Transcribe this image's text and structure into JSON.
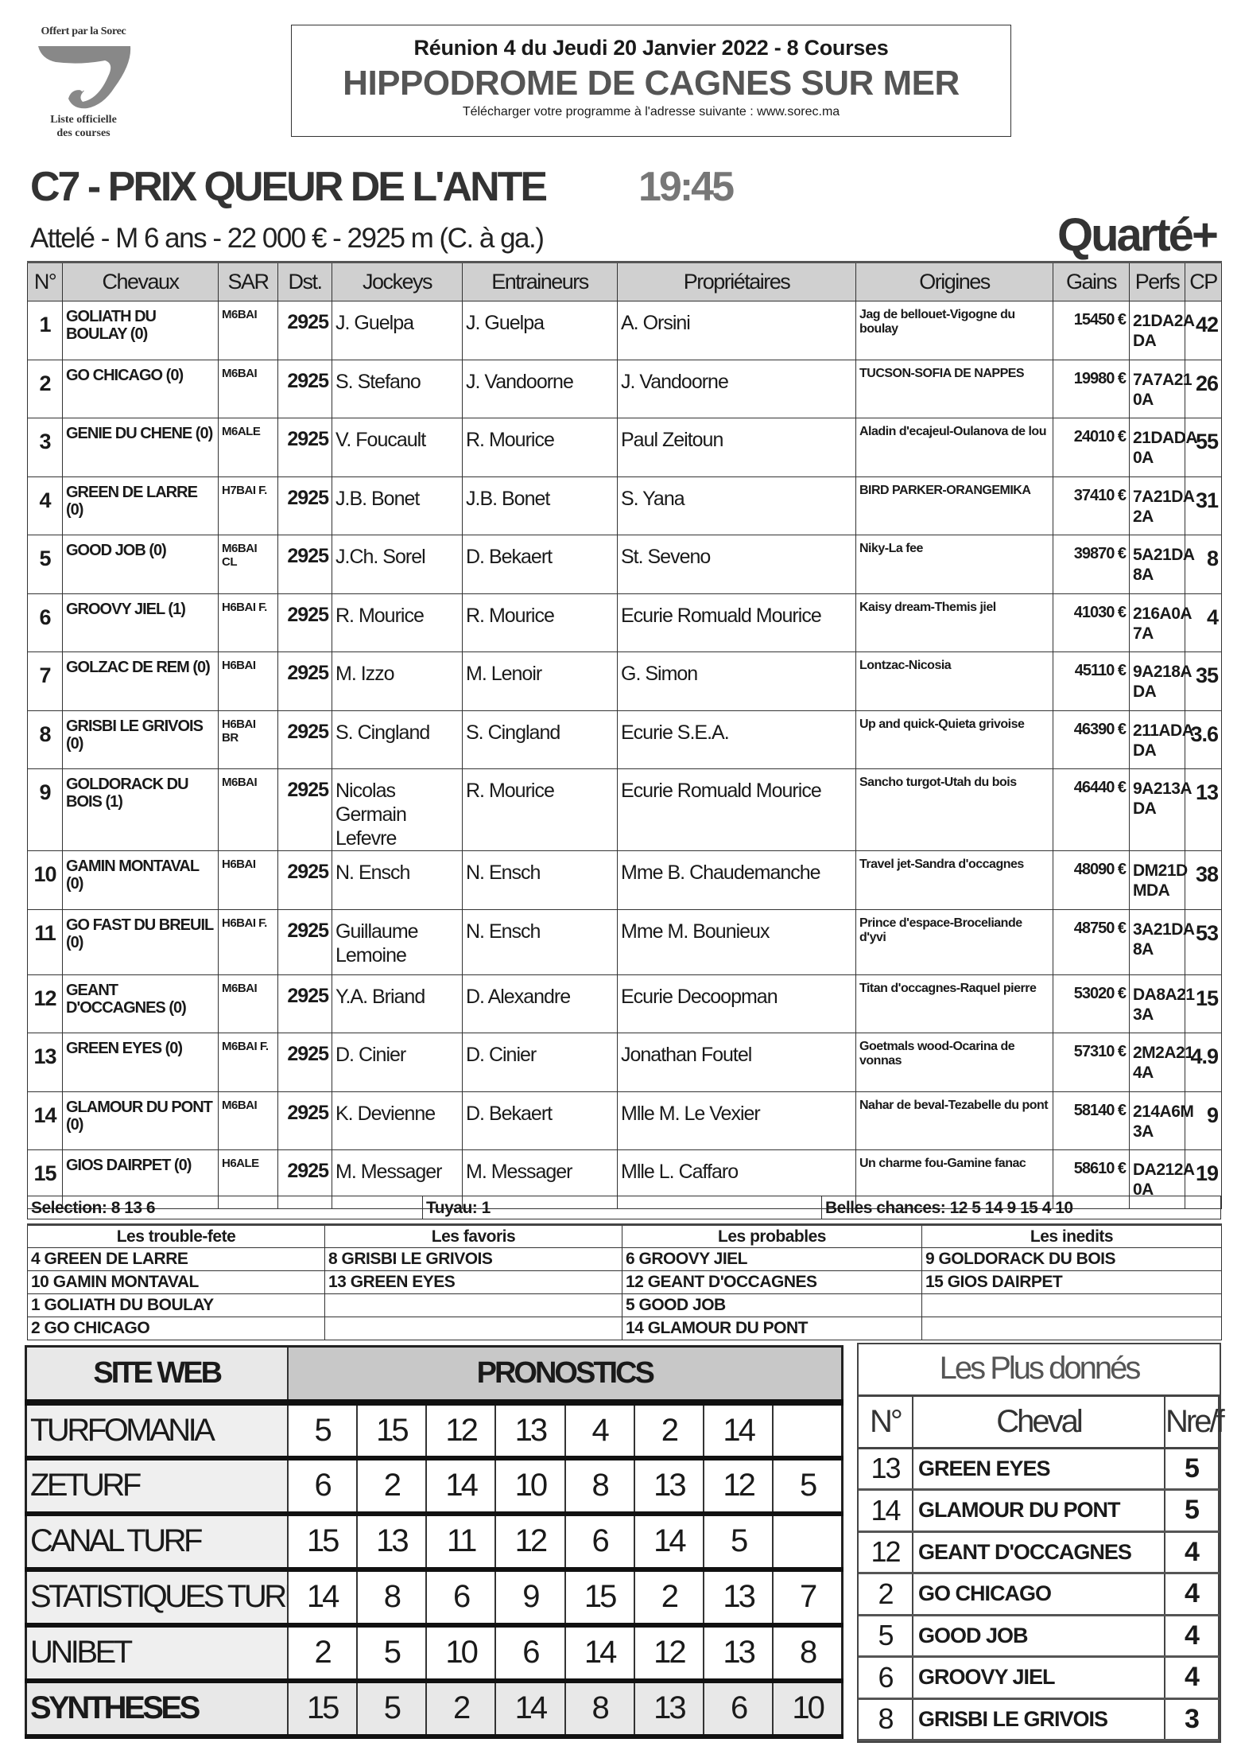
{
  "logo": {
    "top_text": "Offert par la Sorec",
    "bottom_line1": "Liste officielle",
    "bottom_line2": "des courses"
  },
  "header": {
    "meeting": "Réunion 4 du Jeudi 20 Janvier 2022 - 8 Courses",
    "venue": "HIPPODROME DE CAGNES SUR MER",
    "download": "Télécharger votre programme à l'adresse suivante : www.sorec.ma"
  },
  "race": {
    "title": "C7 -  PRIX QUEUR DE L'ANTE",
    "time": "19:45",
    "details": "Attelé - M 6 ans - 22 000 € - 2925 m (C. à ga.)",
    "bet_type": "Quarté+"
  },
  "main_table": {
    "columns": [
      "N°",
      "Chevaux",
      "SAR",
      "Dst.",
      "Jockeys",
      "Entraineurs",
      "Propriétaires",
      "Origines",
      "Gains",
      "Perfs",
      "CP"
    ],
    "rows": [
      [
        "1",
        "GOLIATH DU BOULAY (0)",
        "M6BAI",
        "2925",
        "J. Guelpa",
        "J. Guelpa",
        "A. Orsini",
        "Jag de bellouet-Vigogne du boulay",
        "15450 €",
        "21DA2A DA",
        "42"
      ],
      [
        "2",
        "GO CHICAGO (0)",
        "M6BAI",
        "2925",
        "S. Stefano",
        "J. Vandoorne",
        "J. Vandoorne",
        "TUCSON-SOFIA DE NAPPES",
        "19980 €",
        "7A7A21 0A",
        "26"
      ],
      [
        "3",
        "GENIE DU CHENE (0)",
        "M6ALE",
        "2925",
        "V. Foucault",
        "R. Mourice",
        "Paul Zeitoun",
        "Aladin d'ecajeul-Oulanova de lou",
        "24010 €",
        "21DADA 0A",
        "55"
      ],
      [
        "4",
        "GREEN DE LARRE (0)",
        "H7BAI F.",
        "2925",
        "J.B. Bonet",
        "J.B. Bonet",
        "S. Yana",
        "BIRD PARKER-ORANGEMIKA",
        "37410 €",
        "7A21DA 2A",
        "31"
      ],
      [
        "5",
        "GOOD JOB (0)",
        "M6BAI CL",
        "2925",
        "J.Ch. Sorel",
        "D. Bekaert",
        "St. Seveno",
        "Niky-La fee",
        "39870 €",
        "5A21DA 8A",
        "8"
      ],
      [
        "6",
        "GROOVY JIEL (1)",
        "H6BAI F.",
        "2925",
        "R. Mourice",
        "R. Mourice",
        "Ecurie Romuald Mourice",
        "Kaisy dream-Themis jiel",
        "41030 €",
        "216A0A 7A",
        "4"
      ],
      [
        "7",
        "GOLZAC DE REM (0)",
        "H6BAI",
        "2925",
        "M. Izzo",
        "M. Lenoir",
        "G. Simon",
        "Lontzac-Nicosia",
        "45110 €",
        "9A218A DA",
        "35"
      ],
      [
        "8",
        "GRISBI LE GRIVOIS (0)",
        "H6BAI BR",
        "2925",
        "S. Cingland",
        "S. Cingland",
        "Ecurie S.E.A.",
        "Up and quick-Quieta grivoise",
        "46390 €",
        "211ADA DA",
        "3.6"
      ],
      [
        "9",
        "GOLDORACK DU BOIS (1)",
        "M6BAI",
        "2925",
        "Nicolas Germain Lefevre",
        "R. Mourice",
        "Ecurie Romuald Mourice",
        "Sancho turgot-Utah du bois",
        "46440 €",
        "9A213A DA",
        "13"
      ],
      [
        "10",
        "GAMIN MONTAVAL (0)",
        "H6BAI",
        "2925",
        "N. Ensch",
        "N. Ensch",
        "Mme B. Chaudemanche",
        "Travel jet-Sandra d'occagnes",
        "48090 €",
        "DM21D MDA",
        "38"
      ],
      [
        "11",
        "GO FAST DU BREUIL (0)",
        "H6BAI F.",
        "2925",
        "Guillaume Lemoine",
        "N. Ensch",
        "Mme M. Bounieux",
        "Prince d'espace-Broceliande d'yvi",
        "48750 €",
        "3A21DA 8A",
        "53"
      ],
      [
        "12",
        "GEANT D'OCCAGNES (0)",
        "M6BAI",
        "2925",
        "Y.A. Briand",
        "D. Alexandre",
        "Ecurie Decoopman",
        "Titan d'occagnes-Raquel pierre",
        "53020 €",
        "DA8A21 3A",
        "15"
      ],
      [
        "13",
        "GREEN EYES (0)",
        "M6BAI F.",
        "2925",
        "D. Cinier",
        "D. Cinier",
        "Jonathan Foutel",
        "Goetmals wood-Ocarina de vonnas",
        "57310 €",
        "2M2A21 4A",
        "4.9"
      ],
      [
        "14",
        "GLAMOUR DU PONT (0)",
        "M6BAI",
        "2925",
        "K. Devienne",
        "D. Bekaert",
        "Mlle M. Le Vexier",
        "Nahar de beval-Tezabelle du pont",
        "58140 €",
        "214A6M 3A",
        "9"
      ],
      [
        "15",
        "GIOS DAIRPET (0)",
        "H6ALE",
        "2925",
        "M. Messager",
        "M. Messager",
        "Mlle L. Caffaro",
        "Un charme fou-Gamine fanac",
        "58610 €",
        "DA212A 0A",
        "19"
      ]
    ]
  },
  "selection": {
    "selection": "Selection: 8 13 6",
    "tuyau": "Tuyau: 1",
    "belles_chances": "Belles chances: 12 5 14 9 15 4 10"
  },
  "groups": {
    "headers": [
      "Les trouble-fete",
      "Les favoris",
      "Les probables",
      "Les inedits"
    ],
    "rows": [
      [
        "4 GREEN DE LARRE",
        "8 GRISBI LE GRIVOIS",
        "6 GROOVY JIEL",
        "9 GOLDORACK DU BOIS"
      ],
      [
        "10 GAMIN MONTAVAL",
        "13 GREEN EYES",
        "12 GEANT D'OCCAGNES",
        "15 GIOS DAIRPET"
      ],
      [
        "1 GOLIATH DU BOULAY",
        "",
        "5 GOOD JOB",
        ""
      ],
      [
        "2 GO CHICAGO",
        "",
        "14 GLAMOUR DU PONT",
        ""
      ]
    ]
  },
  "pronostics": {
    "site_header": "SITE WEB",
    "prono_header": "PRONOSTICS",
    "rows": [
      {
        "site": "TURFOMANIA",
        "picks": [
          "5",
          "15",
          "12",
          "13",
          "4",
          "2",
          "14",
          ""
        ]
      },
      {
        "site": "ZETURF",
        "picks": [
          "6",
          "2",
          "14",
          "10",
          "8",
          "13",
          "12",
          "5"
        ]
      },
      {
        "site": "CANAL TURF",
        "picks": [
          "15",
          "13",
          "11",
          "12",
          "6",
          "14",
          "5",
          ""
        ]
      },
      {
        "site": "STATISTIQUES TURF FR.",
        "picks": [
          "14",
          "8",
          "6",
          "9",
          "15",
          "2",
          "13",
          "7"
        ]
      },
      {
        "site": "UNIBET",
        "picks": [
          "2",
          "5",
          "10",
          "6",
          "14",
          "12",
          "13",
          "8"
        ]
      },
      {
        "site": "SYNTHESES",
        "picks": [
          "15",
          "5",
          "2",
          "14",
          "8",
          "13",
          "6",
          "10"
        ]
      }
    ]
  },
  "plus_donnes": {
    "title": "Les Plus donnés",
    "headers": [
      "N°",
      "Cheval",
      "Nre/f"
    ],
    "rows": [
      [
        "13",
        "GREEN EYES",
        "5"
      ],
      [
        "14",
        "GLAMOUR DU PONT",
        "5"
      ],
      [
        "12",
        "GEANT D'OCCAGNES",
        "4"
      ],
      [
        "2",
        "GO CHICAGO",
        "4"
      ],
      [
        "5",
        "GOOD JOB",
        "4"
      ],
      [
        "6",
        "GROOVY JIEL",
        "4"
      ],
      [
        "8",
        "GRISBI LE GRIVOIS",
        "3"
      ]
    ]
  }
}
